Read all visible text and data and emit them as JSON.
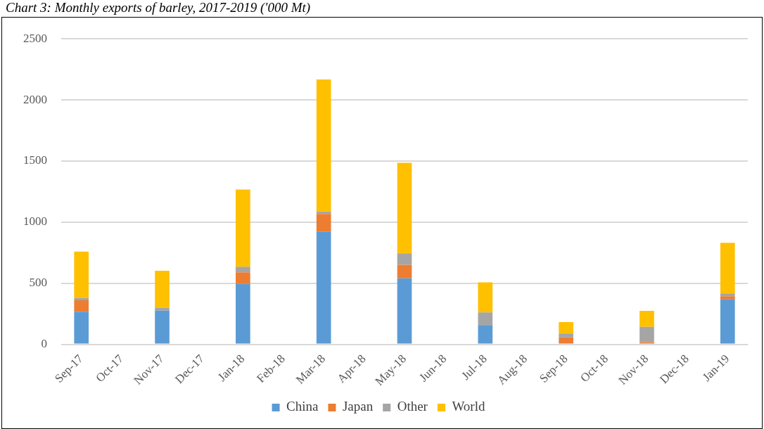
{
  "chart_data": {
    "type": "bar",
    "title": "Chart 3: Monthly exports of barley, 2017-2019 ('000 Mt)",
    "stacked": true,
    "legend": "bottom",
    "grid": "y",
    "categories": [
      "Sep-17",
      "Oct-17",
      "Nov-17",
      "Dec-17",
      "Jan-18",
      "Feb-18",
      "Mar-18",
      "Apr-18",
      "May-18",
      "Jun-18",
      "Jul-18",
      "Aug-18",
      "Sep-18",
      "Oct-18",
      "Nov-18",
      "Dec-18",
      "Jan-19"
    ],
    "ylim": [
      0,
      2500
    ],
    "yticks": [
      0,
      500,
      1000,
      1500,
      2000,
      2500
    ],
    "series": [
      {
        "name": "China",
        "color": "#5b9bd5",
        "values": [
          267,
          null,
          275,
          null,
          494,
          null,
          923,
          null,
          540,
          null,
          157,
          null,
          0,
          null,
          0,
          null,
          370
        ]
      },
      {
        "name": "Japan",
        "color": "#ed7d31",
        "values": [
          93,
          null,
          0,
          null,
          94,
          null,
          144,
          null,
          110,
          null,
          0,
          null,
          56,
          null,
          18,
          null,
          23
        ]
      },
      {
        "name": "Other",
        "color": "#a5a5a5",
        "values": [
          18,
          null,
          24,
          null,
          46,
          null,
          19,
          null,
          94,
          null,
          103,
          null,
          32,
          null,
          125,
          null,
          23
        ]
      },
      {
        "name": "World",
        "color": "#ffc000",
        "values": [
          380,
          null,
          303,
          null,
          633,
          null,
          1081,
          null,
          741,
          null,
          246,
          null,
          93,
          null,
          130,
          null,
          414
        ]
      }
    ]
  }
}
